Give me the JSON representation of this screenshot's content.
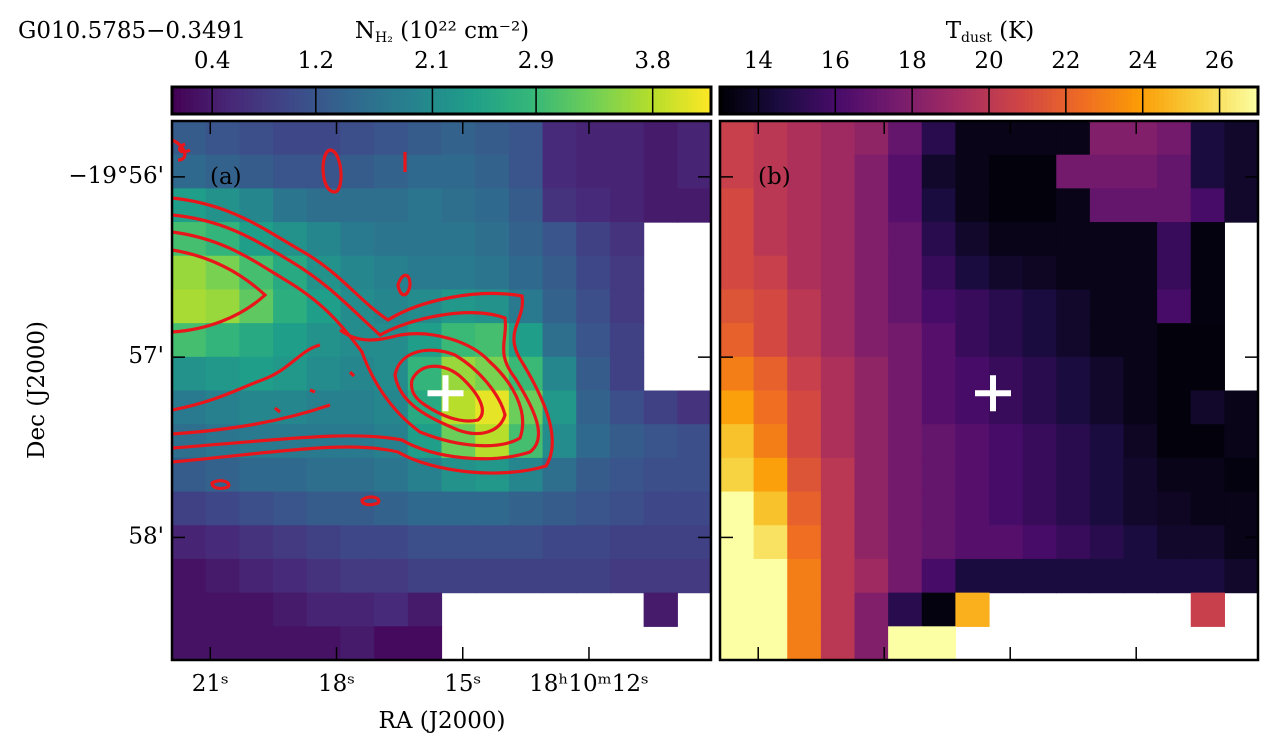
{
  "title": "G010.5785−0.3491",
  "chart_data": [
    {
      "type": "heatmap",
      "panel_label": "(a)",
      "colormap": "viridis",
      "colorbar": {
        "label": {
          "base": "N",
          "sub": "H₂",
          "rest": " (10²² cm⁻²)"
        },
        "lim": [
          0.09,
          4.25
        ],
        "ticks": [
          0.4,
          1.2,
          2.1,
          2.9,
          3.8
        ]
      },
      "x_label": "RA (J2000)",
      "y_label": "Dec (J2000)",
      "xlim": [
        21.91,
        9.1
      ],
      "xticks": [
        {
          "value": 21,
          "label": "21ˢ"
        },
        {
          "value": 18,
          "label": "18ˢ"
        },
        {
          "value": 15,
          "label": "15ˢ"
        },
        {
          "value": 12,
          "label": "18ʰ10ᵐ12ˢ"
        }
      ],
      "ylim": [
        58.68,
        55.69
      ],
      "yticks": [
        {
          "value": 56,
          "label": "−19°56'"
        },
        {
          "value": 57,
          "label": "57'"
        },
        {
          "value": 58,
          "label": "58'"
        }
      ],
      "source": {
        "x": 15.41,
        "y": 57.2
      },
      "values": [
        [
          1.3,
          1.2,
          1.1,
          1.0,
          1.0,
          1.1,
          1.2,
          1.3,
          1.4,
          1.3,
          1.2,
          0.6,
          0.5,
          0.5,
          0.4,
          0.5
        ],
        [
          1.5,
          1.4,
          1.3,
          1.2,
          1.2,
          1.3,
          1.4,
          1.5,
          1.5,
          1.4,
          1.2,
          0.6,
          0.5,
          0.5,
          0.4,
          0.5
        ],
        [
          2.4,
          2.2,
          2.0,
          1.7,
          1.6,
          1.6,
          1.6,
          1.7,
          1.6,
          1.5,
          1.3,
          0.7,
          0.6,
          0.5,
          0.4,
          0.4
        ],
        [
          3.0,
          2.8,
          2.4,
          2.2,
          2.0,
          1.8,
          1.7,
          1.7,
          1.7,
          1.6,
          1.4,
          1.2,
          0.9,
          0.7,
          null,
          null
        ],
        [
          3.6,
          3.4,
          3.0,
          2.6,
          2.2,
          2.0,
          1.9,
          1.8,
          1.8,
          1.7,
          1.5,
          1.3,
          1.0,
          0.8,
          null,
          null
        ],
        [
          3.7,
          3.6,
          3.2,
          2.7,
          2.4,
          2.1,
          2.0,
          2.1,
          2.3,
          2.2,
          1.8,
          1.4,
          1.1,
          0.8,
          null,
          null
        ],
        [
          3.0,
          2.8,
          2.6,
          2.4,
          2.2,
          2.1,
          2.1,
          2.4,
          2.9,
          3.0,
          2.4,
          1.6,
          1.2,
          0.9,
          null,
          null
        ],
        [
          2.2,
          2.3,
          2.4,
          2.3,
          2.1,
          2.0,
          2.1,
          2.8,
          3.6,
          3.4,
          2.9,
          2.0,
          1.3,
          0.9,
          null,
          null
        ],
        [
          1.8,
          1.9,
          2.0,
          2.0,
          1.9,
          1.9,
          2.0,
          2.6,
          3.8,
          4.1,
          3.3,
          2.3,
          1.4,
          1.1,
          0.9,
          0.7
        ],
        [
          1.6,
          1.7,
          1.8,
          1.8,
          1.8,
          1.8,
          1.9,
          2.4,
          3.3,
          3.8,
          3.0,
          2.1,
          1.5,
          1.3,
          1.2,
          1.1
        ],
        [
          1.3,
          1.4,
          1.5,
          1.5,
          1.6,
          1.6,
          1.7,
          1.9,
          2.2,
          2.3,
          2.0,
          1.6,
          1.3,
          1.2,
          1.1,
          1.1
        ],
        [
          0.9,
          1.0,
          1.1,
          1.2,
          1.3,
          1.3,
          1.4,
          1.5,
          1.5,
          1.5,
          1.4,
          1.3,
          1.2,
          1.1,
          1.0,
          1.0
        ],
        [
          0.5,
          0.6,
          0.7,
          0.8,
          0.9,
          1.0,
          1.0,
          1.1,
          1.1,
          1.1,
          1.1,
          1.0,
          1.0,
          0.9,
          0.9,
          0.9
        ],
        [
          0.3,
          0.4,
          0.5,
          0.6,
          0.7,
          0.8,
          0.8,
          0.9,
          0.9,
          0.9,
          0.9,
          0.9,
          0.9,
          0.8,
          0.8,
          0.8
        ],
        [
          0.3,
          0.3,
          0.3,
          0.4,
          0.5,
          0.5,
          0.6,
          0.4,
          null,
          null,
          null,
          null,
          null,
          null,
          0.4,
          null
        ],
        [
          0.3,
          0.3,
          0.3,
          0.3,
          0.3,
          0.4,
          0.2,
          0.2,
          null,
          null,
          null,
          null,
          null,
          null,
          null,
          null
        ]
      ]
    },
    {
      "type": "heatmap",
      "panel_label": "(b)",
      "colormap": "inferno",
      "colorbar": {
        "label": {
          "base": "T",
          "sub": "dust",
          "rest": " (K)"
        },
        "lim": [
          13,
          27
        ],
        "ticks": [
          14,
          16,
          18,
          20,
          22,
          24,
          26
        ]
      },
      "xlim": [
        21.91,
        9.1
      ],
      "ylim": [
        58.68,
        55.69
      ],
      "source": {
        "x": 15.41,
        "y": 57.2
      },
      "values": [
        [
          20.5,
          20,
          19.5,
          19,
          18.5,
          17,
          15,
          13.5,
          13.5,
          13.5,
          13.5,
          18,
          18,
          17.5,
          14.5,
          14
        ],
        [
          20.5,
          20,
          19.5,
          19,
          18,
          16.5,
          14,
          13.5,
          13.2,
          13.2,
          17.5,
          17.5,
          17.5,
          17,
          14.5,
          14
        ],
        [
          21,
          20,
          19.5,
          19,
          18,
          16.5,
          14.5,
          13.5,
          13.2,
          13.2,
          13.5,
          17,
          17,
          17,
          16,
          14
        ],
        [
          21,
          20,
          19.5,
          19,
          18,
          17,
          15,
          14,
          13.5,
          13.5,
          13.5,
          13.5,
          13.5,
          15.5,
          13.3,
          null
        ],
        [
          21,
          20.5,
          19.5,
          19,
          18,
          17,
          15.5,
          14.5,
          14,
          13.8,
          13.5,
          13.5,
          13.5,
          15.5,
          13.3,
          null
        ],
        [
          21.5,
          21,
          20,
          19,
          18,
          17,
          16,
          15.5,
          15,
          14.5,
          14,
          13.5,
          13.5,
          16,
          13.3,
          null
        ],
        [
          22,
          21,
          20,
          19,
          18,
          17.5,
          16.5,
          15.5,
          15,
          14.5,
          14,
          13.5,
          13.5,
          13.2,
          13.2,
          null
        ],
        [
          23,
          22,
          20.5,
          19.5,
          18.5,
          17.5,
          16.5,
          16,
          15.5,
          15,
          14.5,
          14,
          13.5,
          13.2,
          13.2,
          null
        ],
        [
          24,
          22.5,
          21,
          19.5,
          18.5,
          17.5,
          16.5,
          16,
          15.5,
          15,
          14.5,
          14,
          13.5,
          13.2,
          14,
          13.5
        ],
        [
          25,
          23,
          21,
          19.5,
          18.5,
          17.5,
          17,
          16.5,
          16,
          15.5,
          15,
          14.5,
          13.8,
          13.2,
          13.2,
          13.5
        ],
        [
          25.5,
          24,
          21.5,
          20,
          18.5,
          17.5,
          17,
          16.5,
          16,
          15.5,
          15,
          14.5,
          14,
          13.5,
          13.5,
          13.3
        ],
        [
          27,
          25,
          22,
          20,
          18.5,
          17.5,
          17,
          16.5,
          16,
          15.5,
          15,
          14.5,
          14,
          13.8,
          13.5,
          13.5
        ],
        [
          27,
          26,
          22.5,
          20,
          18.5,
          17.5,
          17,
          16.5,
          16.5,
          16,
          15.5,
          15,
          14.5,
          14,
          14,
          13.5
        ],
        [
          27,
          27,
          23,
          20,
          19,
          17.5,
          16,
          14.5,
          14.5,
          14.5,
          14.5,
          14.5,
          14.5,
          14.5,
          14.5,
          14
        ],
        [
          27,
          27,
          23,
          20,
          18,
          15,
          13.3,
          24.5,
          null,
          null,
          null,
          null,
          null,
          null,
          20.5,
          null
        ],
        [
          27,
          27,
          23,
          20,
          18,
          27,
          27,
          null,
          null,
          null,
          null,
          null,
          null,
          null,
          null,
          null
        ]
      ]
    }
  ]
}
